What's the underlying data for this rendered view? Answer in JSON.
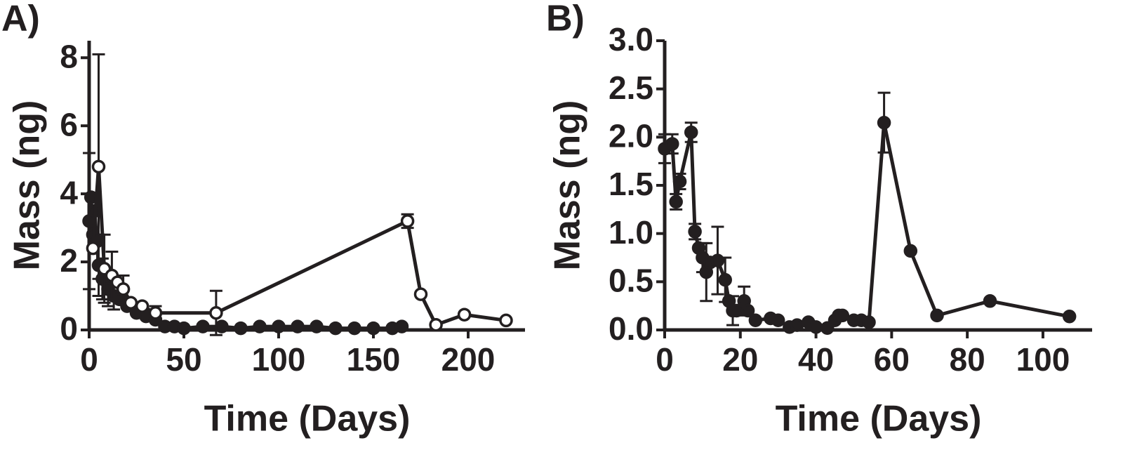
{
  "chart_data": [
    {
      "type": "line",
      "panel_label": "A)",
      "x_label": "Time (Days)",
      "y_label": "Mass (ng)",
      "xlim": [
        0,
        230
      ],
      "xticks": [
        0,
        50,
        100,
        150,
        200
      ],
      "ylim": [
        0,
        8.5
      ],
      "yticks": [
        0,
        2,
        4,
        6,
        8
      ],
      "series": [
        {
          "color": "#231f20",
          "marker": "filled",
          "x": [
            0,
            1,
            2,
            3,
            4,
            5,
            7,
            10,
            13,
            16,
            20,
            25,
            30,
            35,
            40,
            45,
            50,
            60,
            70,
            80,
            90,
            100,
            110,
            120,
            130,
            140,
            150,
            160,
            165
          ],
          "values": [
            3.2,
            3.9,
            2.8,
            3.5,
            2.6,
            1.9,
            1.5,
            1.2,
            1.0,
            0.9,
            0.7,
            0.5,
            0.4,
            0.3,
            0.1,
            0.1,
            0.05,
            0.1,
            0.1,
            0.05,
            0.1,
            0.1,
            0.1,
            0.1,
            0.05,
            0.05,
            0.05,
            0.05,
            0.1
          ],
          "errors": [
            2.0,
            null,
            null,
            null,
            null,
            0.9,
            0.6,
            0.5,
            0.4,
            null,
            null,
            null,
            null,
            null,
            null,
            null,
            null,
            null,
            null,
            null,
            null,
            null,
            null,
            null,
            null,
            null,
            null,
            null,
            null
          ]
        },
        {
          "color": "#231f20",
          "marker": "open",
          "x": [
            2,
            5,
            8,
            12,
            15,
            18,
            22,
            28,
            35,
            67,
            168,
            175,
            183,
            198,
            220
          ],
          "values": [
            2.4,
            4.8,
            1.8,
            1.6,
            1.4,
            1.2,
            0.8,
            0.7,
            0.5,
            0.5,
            3.2,
            1.05,
            0.15,
            0.45,
            0.28
          ],
          "errors": [
            null,
            3.3,
            1.0,
            0.7,
            null,
            0.4,
            null,
            null,
            0.2,
            0.65,
            0.2,
            null,
            null,
            null,
            null
          ]
        }
      ]
    },
    {
      "type": "line",
      "panel_label": "B)",
      "x_label": "Time (Days)",
      "y_label": "Mass (ng)",
      "xlim": [
        0,
        113
      ],
      "xticks": [
        0,
        20,
        40,
        60,
        80,
        100
      ],
      "ylim": [
        0,
        3
      ],
      "yticks": [
        {
          "value": 0,
          "label": "0.0"
        },
        0.5,
        {
          "value": 1,
          "label": "1.0"
        },
        1.5,
        {
          "value": 2,
          "label": "2.0"
        },
        2.5,
        {
          "value": 3,
          "label": "3.0"
        }
      ],
      "series": [
        {
          "color": "#231f20",
          "marker": "filled",
          "x": [
            0,
            2,
            3,
            4,
            7,
            8,
            9,
            10,
            11,
            12,
            14,
            16,
            17,
            18,
            19,
            21,
            22,
            24,
            28,
            30,
            33,
            35,
            38,
            40,
            43,
            45,
            46,
            47,
            50,
            52,
            54,
            58,
            65,
            72,
            86,
            107
          ],
          "values": [
            1.88,
            1.93,
            1.33,
            1.54,
            2.05,
            1.02,
            0.85,
            0.75,
            0.6,
            0.7,
            0.72,
            0.52,
            0.3,
            0.2,
            0.2,
            0.3,
            0.2,
            0.1,
            0.12,
            0.1,
            0.03,
            0.05,
            0.08,
            0.03,
            0.02,
            0.1,
            0.15,
            0.15,
            0.1,
            0.1,
            0.08,
            2.15,
            0.82,
            0.15,
            0.3,
            0.14
          ],
          "errors": [
            0.15,
            0.1,
            0.08,
            0.08,
            0.1,
            0.08,
            null,
            0.15,
            0.3,
            null,
            0.35,
            0.23,
            null,
            0.15,
            null,
            0.15,
            null,
            null,
            null,
            null,
            null,
            null,
            null,
            null,
            null,
            null,
            null,
            null,
            null,
            null,
            null,
            0.31,
            null,
            null,
            null,
            null
          ]
        }
      ]
    }
  ]
}
